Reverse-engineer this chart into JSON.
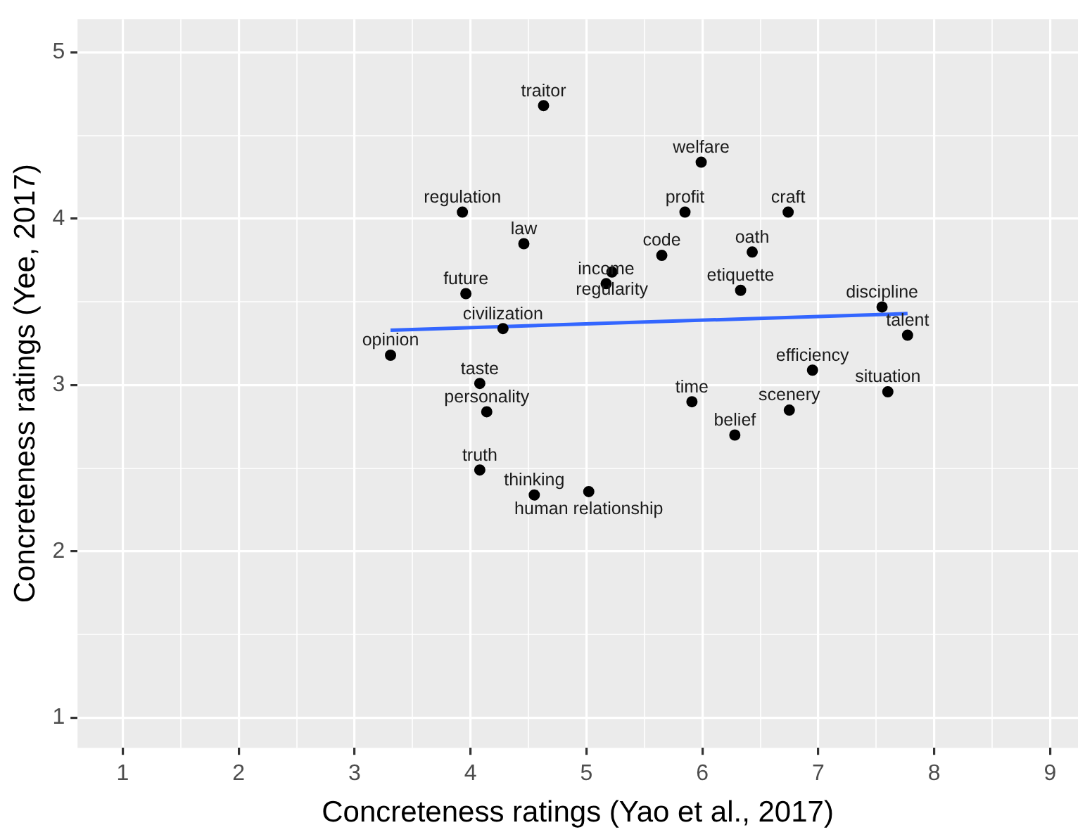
{
  "chart_data": {
    "type": "scatter",
    "xlabel": "Concreteness ratings (Yao et al., 2017)",
    "ylabel": "Concreteness ratings (Yee, 2017)",
    "xlim": [
      0.61,
      9.24
    ],
    "ylim": [
      0.82,
      5.2
    ],
    "xticks": [
      1,
      {
        "value": 1.5,
        "label": null
      },
      2,
      {
        "value": 2.5,
        "label": null
      },
      3,
      {
        "value": 3.5,
        "label": null
      },
      4,
      {
        "value": 4.5,
        "label": null
      },
      5,
      {
        "value": 5.5,
        "label": null
      },
      6,
      {
        "value": 6.5,
        "label": null
      },
      7,
      {
        "value": 7.5,
        "label": null
      },
      8,
      {
        "value": 8.5,
        "label": null
      },
      9
    ],
    "yticks": [
      1,
      {
        "value": 1.5,
        "label": null
      },
      2,
      {
        "value": 2.5,
        "label": null
      },
      3,
      {
        "value": 3.5,
        "label": null
      },
      4,
      {
        "value": 4.5,
        "label": null
      },
      5
    ],
    "grid": true,
    "series": [
      {
        "marker": "circle",
        "color": "#000000",
        "x": [
          4.63,
          5.99,
          3.93,
          5.85,
          4.46,
          5.65,
          5.22,
          5.17,
          3.96,
          4.28,
          6.74,
          6.43,
          6.33,
          7.55,
          7.77,
          6.95,
          7.6,
          6.75,
          6.28,
          5.91,
          3.31,
          4.08,
          4.14,
          4.08,
          4.55,
          5.02
        ],
        "values": [
          4.68,
          4.34,
          4.04,
          4.04,
          3.85,
          3.78,
          3.68,
          3.61,
          3.55,
          3.34,
          4.04,
          3.8,
          3.57,
          3.47,
          3.3,
          3.09,
          2.96,
          2.85,
          2.7,
          2.9,
          3.18,
          3.01,
          2.84,
          2.49,
          2.34,
          2.36
        ]
      },
      {
        "type": "line",
        "color": "#3366ff",
        "x": [
          3.31,
          7.77
        ],
        "values": [
          3.33,
          3.43
        ]
      }
    ],
    "annotations": [
      {
        "text": "traitor",
        "x": 4.63,
        "y": 4.68
      },
      {
        "text": "welfare",
        "x": 5.99,
        "y": 4.34
      },
      {
        "text": "regulation",
        "x": 3.93,
        "y": 4.04
      },
      {
        "text": "profit",
        "x": 5.85,
        "y": 4.04
      },
      {
        "text": "law",
        "x": 4.46,
        "y": 3.85
      },
      {
        "text": "code",
        "x": 5.65,
        "y": 3.78
      },
      {
        "text": "regularity",
        "x": 5.22,
        "y": 3.68
      },
      {
        "text": "income",
        "x": 5.17,
        "y": 3.61
      },
      {
        "text": "future",
        "x": 3.96,
        "y": 3.55
      },
      {
        "text": "civilization",
        "x": 4.28,
        "y": 3.34
      },
      {
        "text": "craft",
        "x": 6.74,
        "y": 4.04
      },
      {
        "text": "oath",
        "x": 6.43,
        "y": 3.8
      },
      {
        "text": "etiquette",
        "x": 6.33,
        "y": 3.57
      },
      {
        "text": "discipline",
        "x": 7.55,
        "y": 3.47
      },
      {
        "text": "talent",
        "x": 7.77,
        "y": 3.3
      },
      {
        "text": "efficiency",
        "x": 6.95,
        "y": 3.09
      },
      {
        "text": "situation",
        "x": 7.6,
        "y": 2.96
      },
      {
        "text": "scenery",
        "x": 6.75,
        "y": 2.85
      },
      {
        "text": "belief",
        "x": 6.28,
        "y": 2.7
      },
      {
        "text": "time",
        "x": 5.91,
        "y": 2.9
      },
      {
        "text": "opinion",
        "x": 3.31,
        "y": 3.18
      },
      {
        "text": "taste",
        "x": 4.08,
        "y": 3.01
      },
      {
        "text": "personality",
        "x": 4.14,
        "y": 2.84
      },
      {
        "text": "truth",
        "x": 4.08,
        "y": 2.49
      },
      {
        "text": "thinking",
        "x": 4.55,
        "y": 2.34
      },
      {
        "text": "human relationship",
        "x": 5.02,
        "y": 2.36
      }
    ]
  }
}
